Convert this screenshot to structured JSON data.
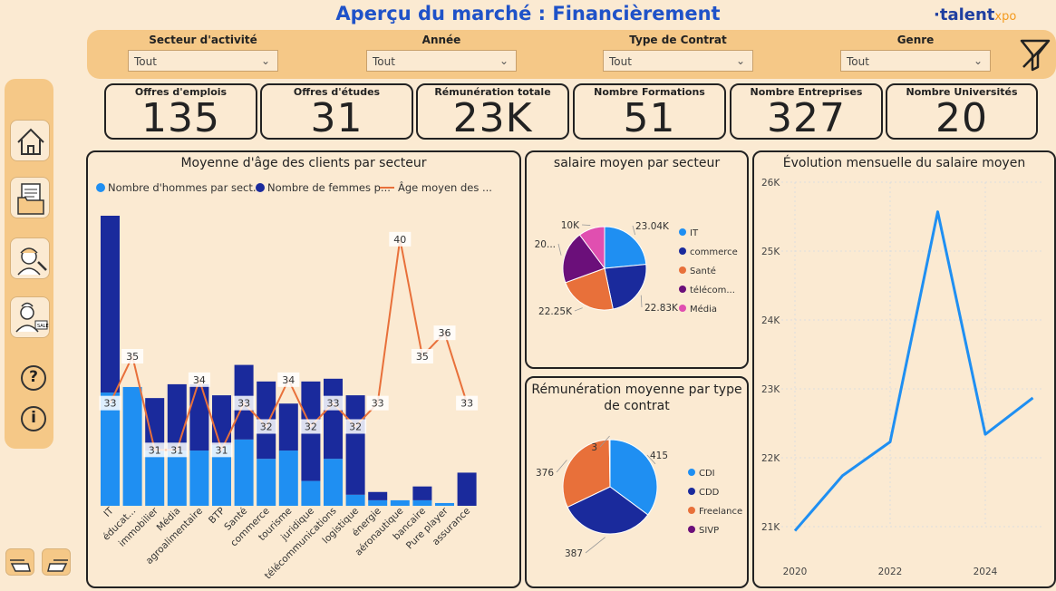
{
  "header": {
    "title": "Aperçu du marché : Financièrement",
    "logo_main": "·talent",
    "logo_sub": "xpo"
  },
  "filters": [
    {
      "label": "Secteur d'activité",
      "value": "Tout"
    },
    {
      "label": "Année",
      "value": "Tout"
    },
    {
      "label": "Type  de Contrat",
      "value": "Tout"
    },
    {
      "label": "Genre",
      "value": "Tout"
    }
  ],
  "sidebar": {
    "icons": [
      "home-icon",
      "document-folder-icon",
      "engineer-icon",
      "seller-icon",
      "help-icon",
      "info-icon"
    ],
    "help_glyph": "?",
    "info_glyph": "i"
  },
  "kpis": [
    {
      "label": "Offres d'emplois",
      "value": "135"
    },
    {
      "label": "Offres d'études",
      "value": "31"
    },
    {
      "label": "Rémunération totale",
      "value": "23K"
    },
    {
      "label": "Nombre Formations",
      "value": "51"
    },
    {
      "label": "Nombre Entreprises",
      "value": "327"
    },
    {
      "label": "Nombre Universités",
      "value": "20"
    }
  ],
  "colors": {
    "light_blue": "#1f8ff2",
    "dark_blue": "#1a2a9c",
    "orange": "#e8703a",
    "purple": "#6b0f7a",
    "pink": "#e04fb0",
    "title_blue": "#1f52c8"
  },
  "chart_data": [
    {
      "type": "bar",
      "title": "Moyenne d'âge des clients par secteur",
      "legend": [
        "Nombre d'hommes par sect...",
        "Nombre de femmes p...",
        "Âge moyen des ..."
      ],
      "legend_placement": "top",
      "categories": [
        "IT",
        "éducat...",
        "immobilier",
        "Média",
        "agroalimentaire",
        "BTP",
        "Santé",
        "commerce",
        "tourisme",
        "juridique",
        "télécommunications",
        "logistique",
        "énergie",
        "aéronautique",
        "bancaire",
        "Pure player",
        "assurance"
      ],
      "bar_max": 105,
      "line_range": [
        29,
        41
      ],
      "series": [
        {
          "name": "Nombre d'hommes par sect...",
          "kind": "bar",
          "values": [
            41,
            43,
            20,
            20,
            20,
            22,
            24,
            17,
            20,
            9,
            17,
            4,
            2,
            2,
            2,
            1,
            0
          ]
        },
        {
          "name": "Nombre de femmes p...",
          "kind": "bar",
          "values": [
            64,
            0,
            19,
            24,
            24,
            18,
            27,
            28,
            17,
            36,
            29,
            36,
            3,
            0,
            5,
            0,
            12
          ]
        },
        {
          "name": "Âge moyen des ...",
          "kind": "line",
          "values": [
            33,
            35,
            31,
            31,
            34,
            31,
            33,
            32,
            34,
            32,
            33,
            32,
            33,
            40,
            35,
            36,
            33
          ],
          "labels": [
            "33",
            "35",
            "31",
            "31",
            "34",
            "31",
            "33",
            "32",
            "34",
            "32",
            "33",
            "32",
            "33",
            "40",
            "35",
            "36",
            "33"
          ]
        }
      ]
    },
    {
      "type": "pie",
      "title": "salaire moyen par secteur",
      "legend": [
        "IT",
        "commerce",
        "Santé",
        "télécom...",
        "Média"
      ],
      "legend_placement": "right",
      "slices": [
        {
          "name": "IT",
          "value": 23.04,
          "label": "23.04K"
        },
        {
          "name": "commerce",
          "value": 22.83,
          "label": "22.83K"
        },
        {
          "name": "Santé",
          "value": 22.25,
          "label": "22.25K"
        },
        {
          "name": "télécom...",
          "value": 20,
          "label": "20..."
        },
        {
          "name": "Média",
          "value": 10,
          "label": "10K"
        }
      ]
    },
    {
      "type": "pie",
      "title": "Rémunération moyenne par type de contrat",
      "title_lines": [
        "Rémunération moyenne par type",
        "de contrat"
      ],
      "legend": [
        "CDI",
        "CDD",
        "Freelance",
        "SIVP"
      ],
      "legend_placement": "right",
      "slices": [
        {
          "name": "CDI",
          "value": 415,
          "label": "415"
        },
        {
          "name": "CDD",
          "value": 387,
          "label": "387"
        },
        {
          "name": "Freelance",
          "value": 376,
          "label": "376"
        },
        {
          "name": "SIVP",
          "value": 3,
          "label": "3"
        }
      ]
    },
    {
      "type": "line",
      "title": "Évolution mensuelle du salaire moyen",
      "x": [
        2020,
        2021,
        2022,
        2023,
        2024,
        2025
      ],
      "y": [
        20940,
        21740,
        22230,
        25570,
        22340,
        22870
      ],
      "xticks": [
        "2020",
        "2022",
        "2024"
      ],
      "yticks": [
        "21K",
        "22K",
        "23K",
        "24K",
        "25K",
        "26K"
      ],
      "ylim": [
        21000,
        26000
      ],
      "grid": true
    }
  ]
}
